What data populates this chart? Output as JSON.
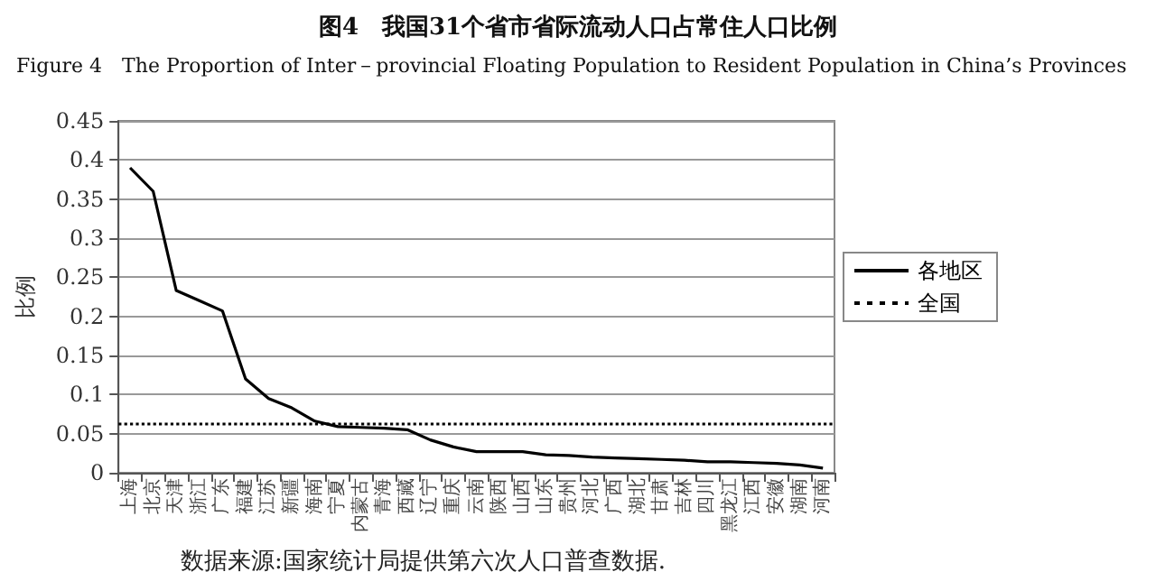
{
  "chart_data": {
    "type": "line",
    "title": "图4　我国31个省市省际流动人口占常住人口比例",
    "subtitle": "Figure 4　The Proportion of Inter－provincial Floating Population to Resident Population in China’s Provinces",
    "ylabel": "比例",
    "categories": [
      "上海",
      "北京",
      "天津",
      "浙江",
      "广东",
      "福建",
      "江苏",
      "新疆",
      "海南",
      "宁夏",
      "内蒙古",
      "青海",
      "西藏",
      "辽宁",
      "重庆",
      "云南",
      "陕西",
      "山西",
      "山东",
      "贵州",
      "河北",
      "广西",
      "湖北",
      "甘肃",
      "吉林",
      "四川",
      "黑龙江",
      "江西",
      "安徽",
      "湖南",
      "河南"
    ],
    "series": [
      {
        "name": "各地区",
        "color": "#000000",
        "values": [
          0.39,
          0.36,
          0.233,
          0.22,
          0.207,
          0.12,
          0.095,
          0.083,
          0.066,
          0.059,
          0.058,
          0.057,
          0.055,
          0.042,
          0.033,
          0.027,
          0.027,
          0.027,
          0.023,
          0.022,
          0.02,
          0.019,
          0.018,
          0.017,
          0.016,
          0.014,
          0.014,
          0.013,
          0.012,
          0.01,
          0.006
        ]
      }
    ],
    "ref_lines": [
      {
        "axis": "y",
        "value": 0.064,
        "label": "全国",
        "color": "#000000",
        "line_style": "dotted"
      }
    ],
    "ylim": [
      0,
      0.45
    ],
    "yticks": [
      0,
      0.05,
      0.1,
      0.15,
      0.2,
      0.25,
      0.3,
      0.35,
      0.4,
      0.45
    ],
    "grid": "y",
    "legend": "right",
    "marker": "none",
    "line_style": "solid",
    "annotations": [
      "数据来源:国家统计局提供第六次人口普查数据."
    ]
  }
}
